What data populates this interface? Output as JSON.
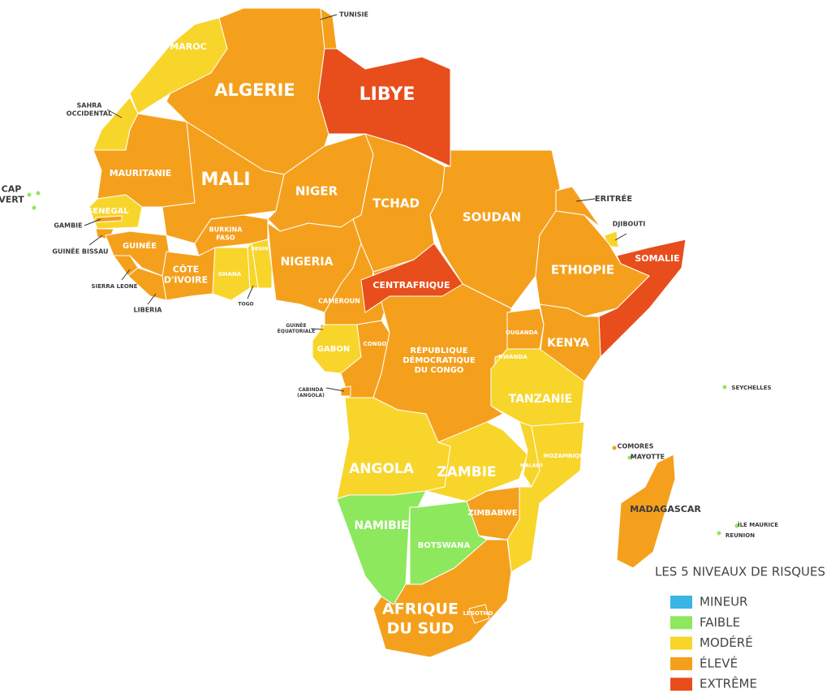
{
  "legend": {
    "title": "LES 5 NIVEAUX DE RISQUES",
    "levels": [
      {
        "name": "MINEUR",
        "color": "#3bb4e6"
      },
      {
        "name": "FAIBLE",
        "color": "#8de85e"
      },
      {
        "name": "MODÉRÉ",
        "color": "#f8d52a"
      },
      {
        "name": "ÉLEVÉ",
        "color": "#f5a01c"
      },
      {
        "name": "EXTRÊME",
        "color": "#e84e1c"
      }
    ]
  },
  "countries": [
    {
      "label": [
        "MAROC"
      ],
      "color": "#f8d52a"
    },
    {
      "label": [
        "ALGERIE"
      ],
      "color": "#f5a01c"
    },
    {
      "label": [
        "TUNISIE"
      ],
      "color": "#f5a01c"
    },
    {
      "label": [
        "LIBYE"
      ],
      "color": "#e84e1c"
    },
    {
      "label": [
        "SAHRA",
        "OCCIDENTAL"
      ],
      "color": "#f8d52a"
    },
    {
      "label": [
        "MAURITANIE"
      ],
      "color": "#f5a01c"
    },
    {
      "label": [
        "MALI"
      ],
      "color": "#f5a01c"
    },
    {
      "label": [
        "NIGER"
      ],
      "color": "#f5a01c"
    },
    {
      "label": [
        "TCHAD"
      ],
      "color": "#f5a01c"
    },
    {
      "label": [
        "SOUDAN"
      ],
      "color": "#f5a01c"
    },
    {
      "label": [
        "ERITRÉE"
      ],
      "color": "#f5a01c"
    },
    {
      "label": [
        "DJIBOUTI"
      ],
      "color": "#f8d52a"
    },
    {
      "label": [
        "SOMALIE"
      ],
      "color": "#e84e1c"
    },
    {
      "label": [
        "ETHIOPIE"
      ],
      "color": "#f5a01c"
    },
    {
      "label": [
        "CAP",
        "VERT"
      ],
      "color": "#8de85e"
    },
    {
      "label": [
        "SENEGAL"
      ],
      "color": "#f8d52a"
    },
    {
      "label": [
        "GAMBIE"
      ],
      "color": "#f5a01c"
    },
    {
      "label": [
        "GUINÉE BISSAU"
      ],
      "color": "#f5a01c"
    },
    {
      "label": [
        "GUINÉE"
      ],
      "color": "#f5a01c"
    },
    {
      "label": [
        "SIERRA LEONE"
      ],
      "color": "#f5a01c"
    },
    {
      "label": [
        "LIBERIA"
      ],
      "color": "#f5a01c"
    },
    {
      "label": [
        "CÔTE",
        "D'IVOIRE"
      ],
      "color": "#f5a01c"
    },
    {
      "label": [
        "BURKINA",
        "FASO"
      ],
      "color": "#f5a01c"
    },
    {
      "label": [
        "GHANA"
      ],
      "color": "#f8d52a"
    },
    {
      "label": [
        "BENIN"
      ],
      "color": "#f8d52a"
    },
    {
      "label": [
        "TOGO"
      ],
      "color": "#f8d52a"
    },
    {
      "label": [
        "NIGERIA"
      ],
      "color": "#f5a01c"
    },
    {
      "label": [
        "CAMEROUN"
      ],
      "color": "#f5a01c"
    },
    {
      "label": [
        "CENTRAFRIQUE"
      ],
      "color": "#e84e1c"
    },
    {
      "label": [
        "GUINÉE",
        "ÉQUATORIALE"
      ],
      "color": "#f5a01c"
    },
    {
      "label": [
        "GABON"
      ],
      "color": "#f8d52a"
    },
    {
      "label": [
        "CONGO"
      ],
      "color": "#f5a01c"
    },
    {
      "label": [
        "CABINDA",
        "(ANGOLA)"
      ],
      "color": "#f5a01c"
    },
    {
      "label": [
        "RÉPUBLIQUE",
        "DÉMOCRATIQUE",
        "DU CONGO"
      ],
      "color": "#f5a01c"
    },
    {
      "label": [
        "OUGANDA"
      ],
      "color": "#f5a01c"
    },
    {
      "label": [
        "RWANDA"
      ],
      "color": "#f8d52a"
    },
    {
      "label": [
        "KENYA"
      ],
      "color": "#f5a01c"
    },
    {
      "label": [
        "TANZANIE"
      ],
      "color": "#f8d52a"
    },
    {
      "label": [
        "ANGOLA"
      ],
      "color": "#f8d52a"
    },
    {
      "label": [
        "ZAMBIE"
      ],
      "color": "#f8d52a"
    },
    {
      "label": [
        "MALAWI"
      ],
      "color": "#f8d52a"
    },
    {
      "label": [
        "MOZAMBIQUE"
      ],
      "color": "#f8d52a"
    },
    {
      "label": [
        "ZIMBABWE"
      ],
      "color": "#f5a01c"
    },
    {
      "label": [
        "NAMIBIE"
      ],
      "color": "#8de85e"
    },
    {
      "label": [
        "BOTSWANA"
      ],
      "color": "#8de85e"
    },
    {
      "label": [
        "AFRIQUE",
        "DU SUD"
      ],
      "color": "#f5a01c"
    },
    {
      "label": [
        "LESOTHO"
      ],
      "color": "#f5a01c"
    },
    {
      "label": [
        "MADAGASCAR"
      ],
      "color": "#f5a01c"
    },
    {
      "label": [
        "COMORES"
      ],
      "color": "#f5a01c"
    },
    {
      "label": [
        "MAYOTTE"
      ],
      "color": "#8de85e"
    },
    {
      "label": [
        "SEYCHELLES"
      ],
      "color": "#8de85e"
    },
    {
      "label": [
        "ÎLE MAURICE"
      ],
      "color": "#8de85e"
    },
    {
      "label": [
        "REUNION"
      ],
      "color": "#8de85e"
    }
  ]
}
